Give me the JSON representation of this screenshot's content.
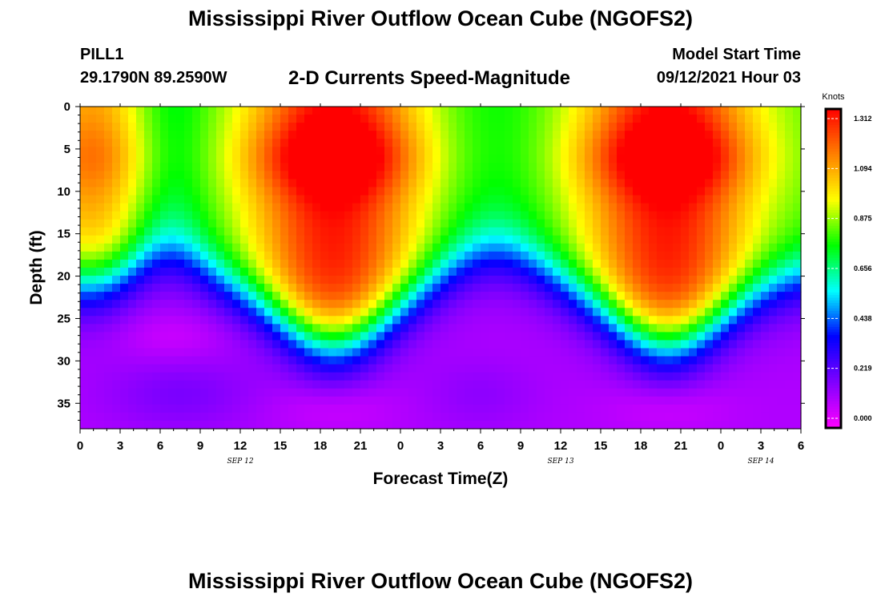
{
  "page": {
    "title_top": "Mississippi River Outflow Ocean Cube (NGOFS2)",
    "title_bottom": "Mississippi River Outflow Ocean Cube (NGOFS2)",
    "station": "PILL1",
    "coords": "29.1790N  89.2590W",
    "model_label": "Model Start Time",
    "model_time": "09/12/2021 Hour 03"
  },
  "chart_data": {
    "type": "heatmap",
    "title": "2-D Currents Speed-Magnitude",
    "xlabel": "Forecast Time(Z)",
    "ylabel": "Depth (ft)",
    "x_ticks": [
      "0",
      "3",
      "6",
      "9",
      "12",
      "15",
      "18",
      "21",
      "0",
      "3",
      "6",
      "9",
      "12",
      "15",
      "18",
      "21",
      "0",
      "3",
      "6"
    ],
    "x_range_hours": [
      0,
      54
    ],
    "y_ticks": [
      0,
      5,
      10,
      15,
      20,
      25,
      30,
      35
    ],
    "y_range": [
      0,
      38
    ],
    "day_labels": [
      {
        "label": "SEP 12",
        "hour": 12
      },
      {
        "label": "SEP 13",
        "hour": 36
      },
      {
        "label": "SEP 14",
        "hour": 51
      }
    ],
    "colorbar": {
      "unit": "Knots",
      "ticks": [
        "1.312",
        "1.094",
        "0.875",
        "0.656",
        "0.438",
        "0.219",
        "0.000"
      ],
      "min": 0.0,
      "max": 1.35,
      "colors": [
        "#ff00ff",
        "#8000ff",
        "#0000ff",
        "#00ffff",
        "#00ff00",
        "#ffff00",
        "#ff8000",
        "#ff0000"
      ]
    },
    "grid": false,
    "field_description": "surface maxima near hours 19 and 44; secondary max near hour 1; minimum core ~hour 6 and ~hour 31 near surface; slow deep water below ~25 ft"
  }
}
